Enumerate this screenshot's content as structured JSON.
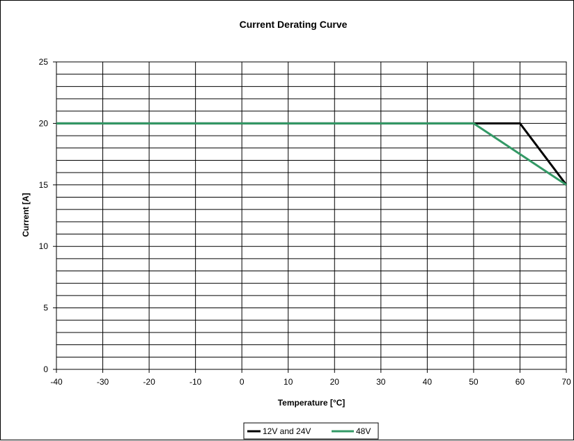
{
  "chart_data": {
    "type": "line",
    "title": "Current Derating Curve",
    "xlabel": "Temperature [°C]",
    "ylabel": "Current [A]",
    "xlim": [
      -40,
      70
    ],
    "ylim": [
      0,
      25
    ],
    "x_ticks": [
      "-40",
      "-30",
      "-20",
      "-10",
      "0",
      "10",
      "20",
      "30",
      "40",
      "50",
      "60",
      "70"
    ],
    "y_ticks": [
      "0",
      "5",
      "10",
      "15",
      "20",
      "25"
    ],
    "x_tick_values": [
      -40,
      -30,
      -20,
      -10,
      0,
      10,
      20,
      30,
      40,
      50,
      60,
      70
    ],
    "y_tick_values": [
      0,
      5,
      10,
      15,
      20,
      25
    ],
    "y_minor_step": 1,
    "grid": true,
    "legend_position": "bottom-center",
    "series": [
      {
        "name": "12V and 24V",
        "color": "#000000",
        "points": [
          [
            -40,
            20
          ],
          [
            50,
            20
          ],
          [
            60,
            20
          ],
          [
            70,
            15
          ]
        ]
      },
      {
        "name": "48V",
        "color": "#339966",
        "points": [
          [
            -40,
            20
          ],
          [
            50,
            20
          ],
          [
            70,
            15
          ]
        ]
      }
    ]
  }
}
